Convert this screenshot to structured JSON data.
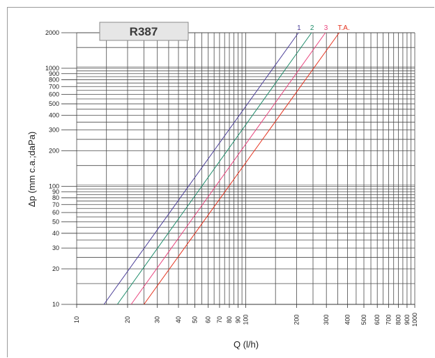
{
  "chart_data": {
    "type": "line",
    "title": "R387",
    "xlabel": "Q (l/h)",
    "ylabel": "Δp (mm c.a.;daPa)",
    "x_scale": "log",
    "y_scale": "log",
    "xlim": [
      10,
      1000
    ],
    "ylim": [
      10,
      2000
    ],
    "grid": true,
    "x_ticks": [
      10,
      20,
      30,
      40,
      50,
      60,
      70,
      80,
      90,
      100,
      200,
      300,
      400,
      500,
      600,
      700,
      800,
      900,
      1000
    ],
    "x_tick_labels": [
      "10",
      "20",
      "30",
      "40",
      "50",
      "60",
      "70",
      "80",
      "90",
      "100",
      "200",
      "300",
      "400",
      "500",
      "600",
      "700",
      "800",
      "900",
      "1000"
    ],
    "y_ticks": [
      10,
      20,
      30,
      40,
      50,
      60,
      70,
      80,
      90,
      100,
      200,
      300,
      400,
      500,
      600,
      700,
      800,
      900,
      1000,
      2000
    ],
    "y_tick_labels": [
      "10",
      "20",
      "30",
      "40",
      "50",
      "60",
      "70",
      "80",
      "90",
      "100",
      "200",
      "300",
      "400",
      "500",
      "600",
      "700",
      "800",
      "900",
      "1000",
      "2000"
    ],
    "series": [
      {
        "name": "1",
        "color": "#4b3f98",
        "x": [
          14.5,
          205
        ],
        "y": [
          10,
          2000
        ]
      },
      {
        "name": "2",
        "color": "#1e8c6a",
        "x": [
          17.4,
          245
        ],
        "y": [
          10,
          2000
        ]
      },
      {
        "name": "3",
        "color": "#e8437c",
        "x": [
          21.0,
          296
        ],
        "y": [
          10,
          2000
        ]
      },
      {
        "name": "T.A.",
        "color": "#e4321e",
        "x": [
          25.0,
          357
        ],
        "y": [
          10,
          2000
        ]
      }
    ]
  }
}
